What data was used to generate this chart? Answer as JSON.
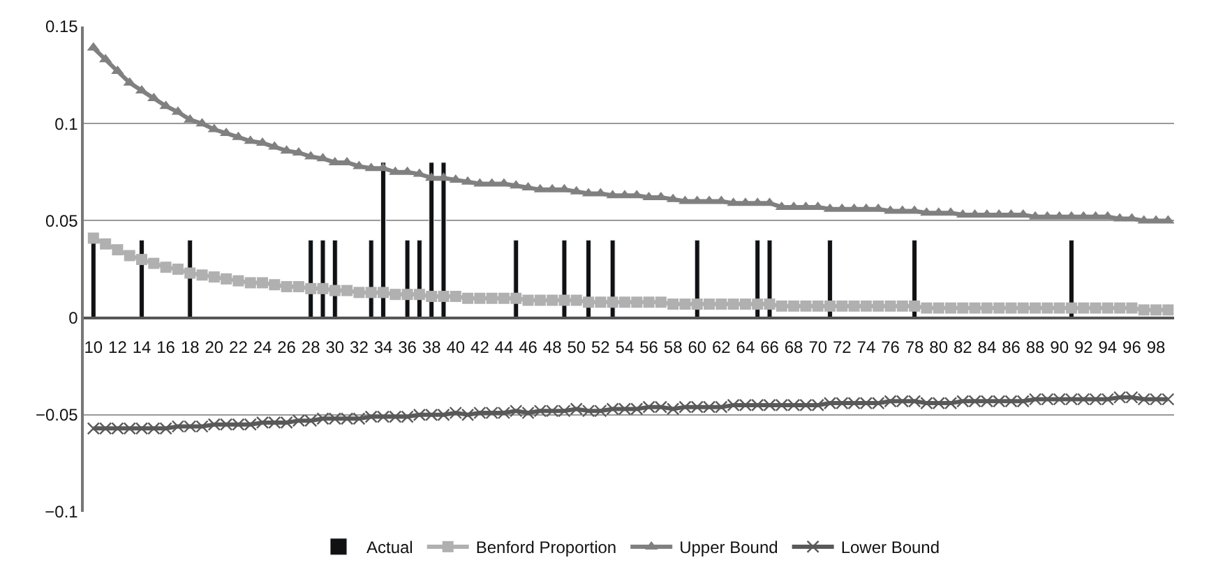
{
  "chart_data": {
    "type": "bar",
    "categories": [
      "10",
      null,
      "12",
      null,
      "14",
      null,
      "16",
      null,
      "18",
      null,
      "20",
      null,
      "22",
      null,
      "24",
      null,
      "26",
      null,
      "28",
      null,
      "30",
      null,
      "32",
      null,
      "34",
      null,
      "36",
      null,
      "38",
      null,
      "40",
      null,
      "42",
      null,
      "44",
      null,
      "46",
      null,
      "48",
      null,
      "50",
      null,
      "52",
      null,
      "54",
      null,
      "56",
      null,
      "58",
      null,
      "60",
      null,
      "62",
      null,
      "64",
      null,
      "66",
      null,
      "68",
      null,
      "70",
      null,
      "72",
      null,
      "74",
      null,
      "76",
      null,
      "78",
      null,
      "80",
      null,
      "82",
      null,
      "84",
      null,
      "86",
      null,
      "88",
      null,
      "90",
      null,
      "92",
      null,
      "94",
      null,
      "96",
      null,
      "98",
      null
    ],
    "series": [
      {
        "name": "Actual",
        "color": "#111111",
        "values": [
          0.04,
          null,
          null,
          null,
          0.04,
          null,
          null,
          null,
          0.04,
          null,
          null,
          null,
          null,
          null,
          null,
          null,
          null,
          null,
          0.04,
          0.04,
          0.04,
          null,
          null,
          0.04,
          0.08,
          null,
          0.04,
          0.04,
          0.08,
          0.08,
          null,
          null,
          null,
          null,
          null,
          0.04,
          null,
          null,
          null,
          0.04,
          null,
          0.04,
          null,
          0.04,
          null,
          null,
          null,
          null,
          null,
          null,
          0.04,
          null,
          null,
          null,
          null,
          0.04,
          0.04,
          null,
          null,
          null,
          null,
          0.04,
          null,
          null,
          null,
          null,
          null,
          null,
          0.04,
          null,
          null,
          null,
          null,
          null,
          null,
          null,
          null,
          null,
          null,
          null,
          null,
          0.04,
          null,
          null,
          null,
          null,
          null,
          null,
          null,
          null
        ]
      },
      {
        "name": "Benford Proportion",
        "type": "line",
        "marker": "square",
        "color": "#b0b0b0",
        "values": [
          0.041,
          0.038,
          0.035,
          0.032,
          0.03,
          0.028,
          0.026,
          0.025,
          0.023,
          0.022,
          0.021,
          0.02,
          0.019,
          0.018,
          0.018,
          0.017,
          0.016,
          0.016,
          0.015,
          0.015,
          0.014,
          0.014,
          0.013,
          0.013,
          0.013,
          0.012,
          0.012,
          0.012,
          0.011,
          0.011,
          0.011,
          0.01,
          0.01,
          0.01,
          0.01,
          0.01,
          0.009,
          0.009,
          0.009,
          0.009,
          0.009,
          0.008,
          0.008,
          0.008,
          0.008,
          0.008,
          0.008,
          0.008,
          0.007,
          0.007,
          0.007,
          0.007,
          0.007,
          0.007,
          0.007,
          0.007,
          0.007,
          0.006,
          0.006,
          0.006,
          0.006,
          0.006,
          0.006,
          0.006,
          0.006,
          0.006,
          0.006,
          0.006,
          0.006,
          0.005,
          0.005,
          0.005,
          0.005,
          0.005,
          0.005,
          0.005,
          0.005,
          0.005,
          0.005,
          0.005,
          0.005,
          0.005,
          0.005,
          0.005,
          0.005,
          0.005,
          0.005,
          0.004,
          0.004,
          0.004
        ]
      },
      {
        "name": "Upper Bound",
        "type": "line",
        "marker": "triangle",
        "color": "#808080",
        "values": [
          0.139,
          0.133,
          0.127,
          0.121,
          0.117,
          0.113,
          0.109,
          0.106,
          0.102,
          0.1,
          0.097,
          0.095,
          0.093,
          0.091,
          0.09,
          0.088,
          0.086,
          0.085,
          0.083,
          0.082,
          0.08,
          0.08,
          0.078,
          0.077,
          0.077,
          0.075,
          0.075,
          0.074,
          0.072,
          0.072,
          0.071,
          0.07,
          0.069,
          0.069,
          0.069,
          0.068,
          0.067,
          0.066,
          0.066,
          0.066,
          0.065,
          0.064,
          0.064,
          0.063,
          0.063,
          0.063,
          0.062,
          0.062,
          0.061,
          0.06,
          0.06,
          0.06,
          0.06,
          0.059,
          0.059,
          0.059,
          0.059,
          0.057,
          0.057,
          0.057,
          0.057,
          0.056,
          0.056,
          0.056,
          0.056,
          0.056,
          0.055,
          0.055,
          0.055,
          0.054,
          0.054,
          0.054,
          0.053,
          0.053,
          0.053,
          0.053,
          0.053,
          0.053,
          0.052,
          0.052,
          0.052,
          0.052,
          0.052,
          0.052,
          0.052,
          0.051,
          0.051,
          0.05,
          0.05,
          0.05
        ]
      },
      {
        "name": "Lower Bound",
        "type": "line",
        "marker": "cross",
        "color": "#595959",
        "values": [
          -0.057,
          -0.057,
          -0.057,
          -0.057,
          -0.057,
          -0.057,
          -0.057,
          -0.056,
          -0.056,
          -0.056,
          -0.055,
          -0.055,
          -0.055,
          -0.055,
          -0.054,
          -0.054,
          -0.054,
          -0.053,
          -0.053,
          -0.052,
          -0.052,
          -0.052,
          -0.052,
          -0.051,
          -0.051,
          -0.051,
          -0.051,
          -0.05,
          -0.05,
          -0.05,
          -0.049,
          -0.05,
          -0.049,
          -0.049,
          -0.049,
          -0.048,
          -0.049,
          -0.048,
          -0.048,
          -0.048,
          -0.047,
          -0.048,
          -0.048,
          -0.047,
          -0.047,
          -0.047,
          -0.046,
          -0.046,
          -0.047,
          -0.046,
          -0.046,
          -0.046,
          -0.046,
          -0.045,
          -0.045,
          -0.045,
          -0.045,
          -0.045,
          -0.045,
          -0.045,
          -0.045,
          -0.044,
          -0.044,
          -0.044,
          -0.044,
          -0.044,
          -0.043,
          -0.043,
          -0.043,
          -0.044,
          -0.044,
          -0.044,
          -0.043,
          -0.043,
          -0.043,
          -0.043,
          -0.043,
          -0.043,
          -0.042,
          -0.042,
          -0.042,
          -0.042,
          -0.042,
          -0.042,
          -0.042,
          -0.041,
          -0.041,
          -0.042,
          -0.042,
          -0.042
        ]
      }
    ],
    "ylim": [
      -0.1,
      0.15
    ],
    "yticks": [
      {
        "value": -0.1,
        "label": "−0.1"
      },
      {
        "value": -0.05,
        "label": "−0.05"
      },
      0,
      0.05,
      0.1,
      0.15
    ],
    "grid": "y",
    "legend": "bottom"
  }
}
